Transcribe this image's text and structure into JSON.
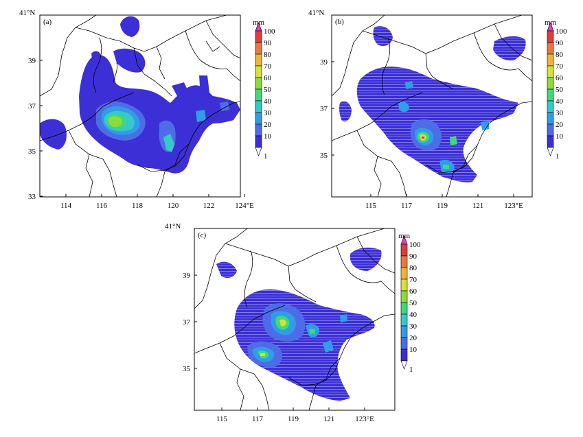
{
  "panels": [
    {
      "label": "(a)",
      "corner_label": "41°N",
      "x_ticks": [
        "114",
        "116",
        "118",
        "120",
        "122",
        "124°E"
      ],
      "y_ticks": [
        "39",
        "37",
        "35",
        "33"
      ],
      "colorbar": {
        "unit": "mm",
        "levels": [
          "100",
          "90",
          "80",
          "70",
          "60",
          "50",
          "40",
          "30",
          "20",
          "10",
          "1"
        ]
      }
    },
    {
      "label": "(b)",
      "corner_label": "41°N",
      "x_ticks": [
        "115",
        "117",
        "119",
        "121",
        "123°E"
      ],
      "y_ticks": [
        "39",
        "37",
        "35"
      ],
      "colorbar": {
        "unit": "mm",
        "levels": [
          "100",
          "90",
          "80",
          "70",
          "60",
          "50",
          "40",
          "30",
          "20",
          "10",
          "1"
        ]
      }
    },
    {
      "label": "(c)",
      "corner_label": "41°N",
      "x_ticks": [
        "115",
        "117",
        "119",
        "121",
        "123°E"
      ],
      "y_ticks": [
        "39",
        "37",
        "35"
      ],
      "colorbar": {
        "unit": "mm",
        "levels": [
          "100",
          "90",
          "80",
          "70",
          "60",
          "50",
          "40",
          "30",
          "20",
          "10",
          "1"
        ]
      }
    }
  ],
  "colors": {
    "scale": [
      "#3c2fd6",
      "#4d6ce8",
      "#2f9ee8",
      "#37c8c8",
      "#3fd87a",
      "#8cdc3c",
      "#d6e23c",
      "#f0b43c",
      "#e8783c",
      "#e03c3c",
      "#e03cc8"
    ],
    "boundary": "#000000",
    "frame": "#000000"
  }
}
